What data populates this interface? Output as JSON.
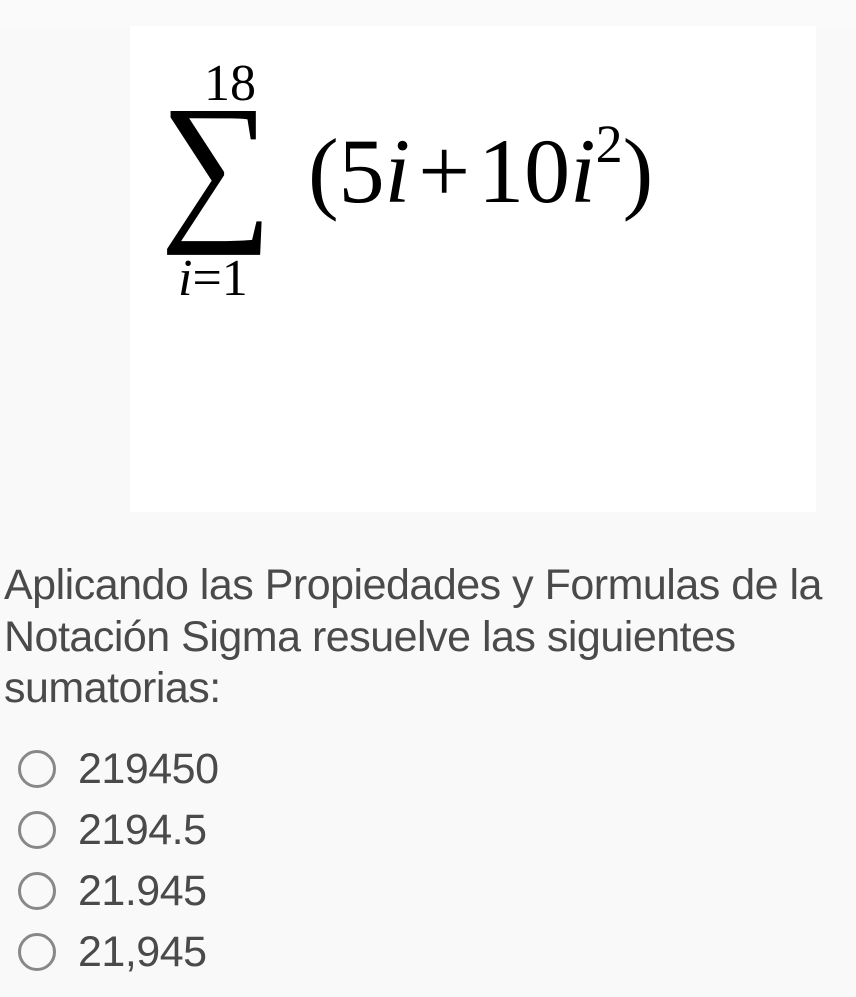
{
  "formula": {
    "upper_limit": "18",
    "lower_var": "i",
    "lower_eq": "=",
    "lower_val": "1",
    "sigma": "∑",
    "summand_open": "(",
    "summand_coef1": "5",
    "summand_var1": "i",
    "summand_plus": "+",
    "summand_coef2": "10",
    "summand_var2": "i",
    "summand_exp": "2",
    "summand_close": ")"
  },
  "question": "Aplicando las Propiedades y Formulas de la Notación Sigma resuelve las siguientes sumatorias:",
  "options": [
    "219450",
    "2194.5",
    "21.945",
    "21,945"
  ],
  "colors": {
    "page_bg": "#f9f9f9",
    "formula_bg": "#ffffff",
    "text": "#4a4a4a",
    "formula_text": "#000000",
    "radio_border": "#888888"
  }
}
